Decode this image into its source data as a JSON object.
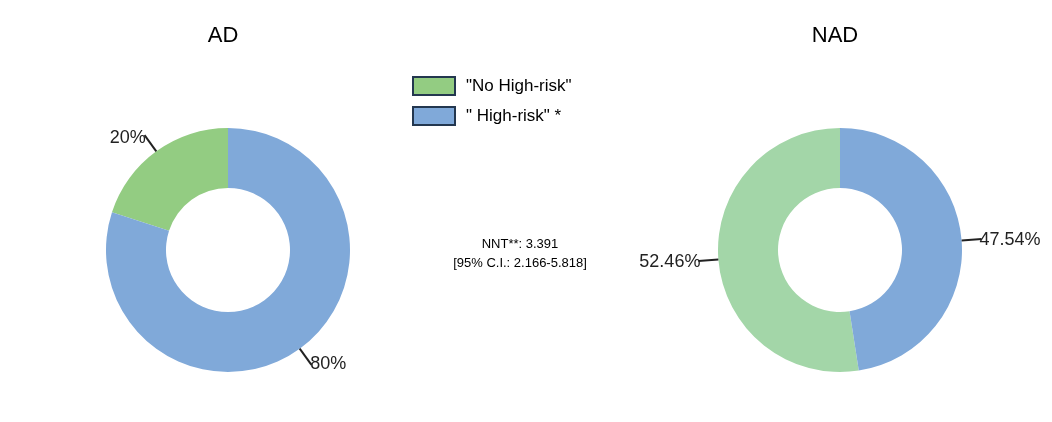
{
  "chart_data": [
    {
      "type": "donut",
      "title": "AD",
      "categories": [
        "\"No High-risk\"",
        "\" High-risk\" *"
      ],
      "values": [
        20,
        80
      ],
      "colors": [
        "#93cc82",
        "#80a9d9"
      ],
      "value_labels": [
        "20%",
        "80%"
      ],
      "legend": "right",
      "annotations": [
        "NNT**: 3.391",
        "[95% C.I.: 2.166-5.818]"
      ]
    },
    {
      "type": "donut",
      "title": "NAD",
      "categories": [
        null,
        null
      ],
      "values": [
        52.46,
        47.54
      ],
      "colors": [
        "#a3d6a8",
        "#80a9d9"
      ],
      "value_labels": [
        "52.46%",
        "47.54%"
      ]
    }
  ]
}
